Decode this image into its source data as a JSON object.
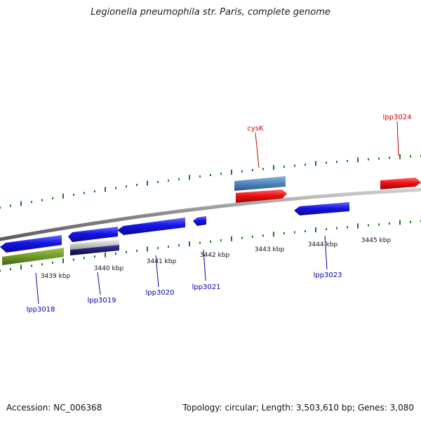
{
  "title": "Legionella pneumophila str. Paris, complete genome",
  "footer": {
    "accession": "Accession: NC_006368",
    "summary": "Topology: circular; Length: 3,503,610 bp; Genes: 3,080"
  },
  "colors": {
    "forward_gene": "#ee1111",
    "reverse_gene": "#1111dd",
    "steelblue_gene": "#4f87bd",
    "olive_gene": "#6f9a2a",
    "navy_gene": "#101070",
    "silver_gene": "#c8c8c8",
    "backbone": "#888888",
    "tick": "#1a7a1a",
    "label_forward": "#cc0000",
    "label_reverse": "#0000aa"
  },
  "scale_ticks": [
    {
      "label": "3439 kbp",
      "kb": 3439
    },
    {
      "label": "3440 kbp",
      "kb": 3440
    },
    {
      "label": "3441 kbp",
      "kb": 3441
    },
    {
      "label": "3442 kbp",
      "kb": 3442
    },
    {
      "label": "3443 kbp",
      "kb": 3443
    },
    {
      "label": "3444 kbp",
      "kb": 3444
    },
    {
      "label": "3445 kbp",
      "kb": 3445
    }
  ],
  "gene_labels": [
    {
      "text": "cysK",
      "strand": "forward"
    },
    {
      "text": "lpp3024",
      "strand": "forward"
    },
    {
      "text": "lpp3018",
      "strand": "reverse"
    },
    {
      "text": "lpp3019",
      "strand": "reverse"
    },
    {
      "text": "lpp3020",
      "strand": "reverse"
    },
    {
      "text": "lpp3021",
      "strand": "reverse"
    },
    {
      "text": "lpp3023",
      "strand": "reverse"
    }
  ]
}
